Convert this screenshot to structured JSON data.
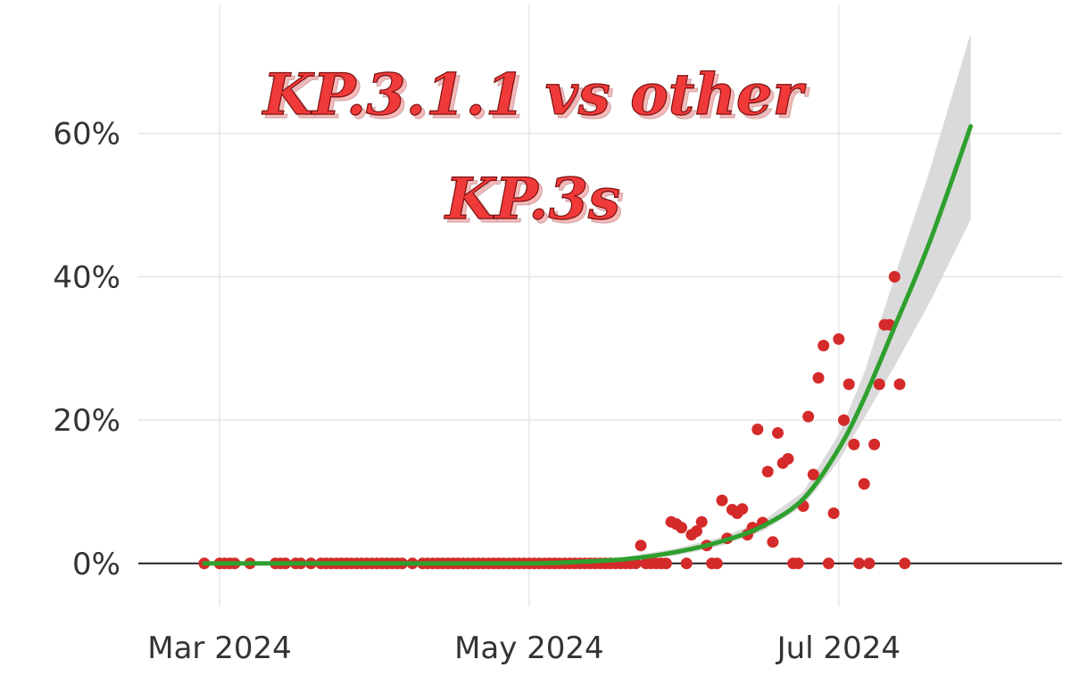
{
  "chart_data": {
    "type": "scatter",
    "title_lines": [
      "KP.3.1.1 vs other",
      "KP.3s"
    ],
    "xlabel": "",
    "ylabel": "",
    "x_ticks": [
      {
        "label": "Mar 2024",
        "date": "2024-03-01"
      },
      {
        "label": "May 2024",
        "date": "2024-05-01"
      },
      {
        "label": "Jul 2024",
        "date": "2024-07-01"
      }
    ],
    "y_ticks": [
      {
        "label": "0%",
        "value": 0
      },
      {
        "label": "20%",
        "value": 20
      },
      {
        "label": "40%",
        "value": 40
      },
      {
        "label": "60%",
        "value": 60
      }
    ],
    "xlim": [
      "2024-02-14",
      "2024-08-14"
    ],
    "ylim": [
      -6,
      78
    ],
    "grid": true,
    "colors": {
      "points": "#d42a2a",
      "fit": "#2ea02e",
      "band": "#d6d6d6",
      "title": "#f03a3a",
      "grid": "#e6e6e6",
      "zero_line": "#222222"
    },
    "fit": [
      {
        "date": "2024-02-27",
        "y": 0.0,
        "lo": 0.0,
        "hi": 0.0
      },
      {
        "date": "2024-04-01",
        "y": 0.0,
        "lo": 0.0,
        "hi": 0.0
      },
      {
        "date": "2024-05-01",
        "y": 0.0,
        "lo": 0.0,
        "hi": 0.1
      },
      {
        "date": "2024-05-10",
        "y": 0.2,
        "lo": 0.1,
        "hi": 0.3
      },
      {
        "date": "2024-05-20",
        "y": 0.6,
        "lo": 0.4,
        "hi": 0.9
      },
      {
        "date": "2024-05-30",
        "y": 1.6,
        "lo": 1.1,
        "hi": 2.1
      },
      {
        "date": "2024-06-08",
        "y": 3.1,
        "lo": 2.5,
        "hi": 3.7
      },
      {
        "date": "2024-06-16",
        "y": 5.2,
        "lo": 4.5,
        "hi": 5.9
      },
      {
        "date": "2024-06-24",
        "y": 9.0,
        "lo": 8.0,
        "hi": 10.0
      },
      {
        "date": "2024-07-01",
        "y": 16.0,
        "lo": 14.3,
        "hi": 18.0
      },
      {
        "date": "2024-07-06",
        "y": 23.0,
        "lo": 20.3,
        "hi": 26.5
      },
      {
        "date": "2024-07-12",
        "y": 33.0,
        "lo": 27.5,
        "hi": 40.0
      },
      {
        "date": "2024-07-19",
        "y": 45.0,
        "lo": 36.5,
        "hi": 55.0
      },
      {
        "date": "2024-07-27",
        "y": 61.0,
        "lo": 48.0,
        "hi": 74.0
      }
    ],
    "points": [
      {
        "date": "2024-02-27",
        "y": 0
      },
      {
        "date": "2024-03-01",
        "y": 0
      },
      {
        "date": "2024-03-02",
        "y": 0
      },
      {
        "date": "2024-03-03",
        "y": 0
      },
      {
        "date": "2024-03-04",
        "y": 0
      },
      {
        "date": "2024-03-07",
        "y": 0
      },
      {
        "date": "2024-03-12",
        "y": 0
      },
      {
        "date": "2024-03-13",
        "y": 0
      },
      {
        "date": "2024-03-14",
        "y": 0
      },
      {
        "date": "2024-03-16",
        "y": 0
      },
      {
        "date": "2024-03-17",
        "y": 0
      },
      {
        "date": "2024-03-19",
        "y": 0
      },
      {
        "date": "2024-03-21",
        "y": 0
      },
      {
        "date": "2024-03-22",
        "y": 0
      },
      {
        "date": "2024-03-23",
        "y": 0
      },
      {
        "date": "2024-03-24",
        "y": 0
      },
      {
        "date": "2024-03-25",
        "y": 0
      },
      {
        "date": "2024-03-26",
        "y": 0
      },
      {
        "date": "2024-03-27",
        "y": 0
      },
      {
        "date": "2024-03-28",
        "y": 0
      },
      {
        "date": "2024-03-29",
        "y": 0
      },
      {
        "date": "2024-03-30",
        "y": 0
      },
      {
        "date": "2024-03-31",
        "y": 0
      },
      {
        "date": "2024-04-01",
        "y": 0
      },
      {
        "date": "2024-04-02",
        "y": 0
      },
      {
        "date": "2024-04-03",
        "y": 0
      },
      {
        "date": "2024-04-04",
        "y": 0
      },
      {
        "date": "2024-04-05",
        "y": 0
      },
      {
        "date": "2024-04-06",
        "y": 0
      },
      {
        "date": "2024-04-08",
        "y": 0
      },
      {
        "date": "2024-04-10",
        "y": 0
      },
      {
        "date": "2024-04-11",
        "y": 0
      },
      {
        "date": "2024-04-12",
        "y": 0
      },
      {
        "date": "2024-04-13",
        "y": 0
      },
      {
        "date": "2024-04-14",
        "y": 0
      },
      {
        "date": "2024-04-15",
        "y": 0
      },
      {
        "date": "2024-04-16",
        "y": 0
      },
      {
        "date": "2024-04-17",
        "y": 0
      },
      {
        "date": "2024-04-18",
        "y": 0
      },
      {
        "date": "2024-04-19",
        "y": 0
      },
      {
        "date": "2024-04-20",
        "y": 0
      },
      {
        "date": "2024-04-21",
        "y": 0
      },
      {
        "date": "2024-04-22",
        "y": 0
      },
      {
        "date": "2024-04-23",
        "y": 0
      },
      {
        "date": "2024-04-24",
        "y": 0
      },
      {
        "date": "2024-04-25",
        "y": 0
      },
      {
        "date": "2024-04-26",
        "y": 0
      },
      {
        "date": "2024-04-27",
        "y": 0
      },
      {
        "date": "2024-04-28",
        "y": 0
      },
      {
        "date": "2024-04-29",
        "y": 0
      },
      {
        "date": "2024-04-30",
        "y": 0
      },
      {
        "date": "2024-05-01",
        "y": 0
      },
      {
        "date": "2024-05-02",
        "y": 0
      },
      {
        "date": "2024-05-03",
        "y": 0
      },
      {
        "date": "2024-05-04",
        "y": 0
      },
      {
        "date": "2024-05-05",
        "y": 0
      },
      {
        "date": "2024-05-06",
        "y": 0
      },
      {
        "date": "2024-05-07",
        "y": 0
      },
      {
        "date": "2024-05-08",
        "y": 0
      },
      {
        "date": "2024-05-09",
        "y": 0
      },
      {
        "date": "2024-05-10",
        "y": 0
      },
      {
        "date": "2024-05-11",
        "y": 0
      },
      {
        "date": "2024-05-12",
        "y": 0
      },
      {
        "date": "2024-05-13",
        "y": 0
      },
      {
        "date": "2024-05-14",
        "y": 0
      },
      {
        "date": "2024-05-15",
        "y": 0
      },
      {
        "date": "2024-05-16",
        "y": 0
      },
      {
        "date": "2024-05-17",
        "y": 0
      },
      {
        "date": "2024-05-18",
        "y": 0
      },
      {
        "date": "2024-05-19",
        "y": 0
      },
      {
        "date": "2024-05-20",
        "y": 0
      },
      {
        "date": "2024-05-21",
        "y": 0
      },
      {
        "date": "2024-05-22",
        "y": 0
      },
      {
        "date": "2024-05-23",
        "y": 2.5
      },
      {
        "date": "2024-05-24",
        "y": 0
      },
      {
        "date": "2024-05-25",
        "y": 0
      },
      {
        "date": "2024-05-26",
        "y": 0
      },
      {
        "date": "2024-05-27",
        "y": 0
      },
      {
        "date": "2024-05-28",
        "y": 0
      },
      {
        "date": "2024-05-29",
        "y": 5.8
      },
      {
        "date": "2024-05-30",
        "y": 5.5
      },
      {
        "date": "2024-05-31",
        "y": 5.0
      },
      {
        "date": "2024-06-01",
        "y": 0
      },
      {
        "date": "2024-06-02",
        "y": 4.0
      },
      {
        "date": "2024-06-03",
        "y": 4.5
      },
      {
        "date": "2024-06-04",
        "y": 5.8
      },
      {
        "date": "2024-06-05",
        "y": 2.5
      },
      {
        "date": "2024-06-06",
        "y": 0
      },
      {
        "date": "2024-06-07",
        "y": 0
      },
      {
        "date": "2024-06-08",
        "y": 8.8
      },
      {
        "date": "2024-06-09",
        "y": 3.5
      },
      {
        "date": "2024-06-10",
        "y": 7.5
      },
      {
        "date": "2024-06-11",
        "y": 7.0
      },
      {
        "date": "2024-06-12",
        "y": 7.6
      },
      {
        "date": "2024-06-13",
        "y": 4.0
      },
      {
        "date": "2024-06-14",
        "y": 5.0
      },
      {
        "date": "2024-06-15",
        "y": 18.7
      },
      {
        "date": "2024-06-16",
        "y": 5.7
      },
      {
        "date": "2024-06-17",
        "y": 12.8
      },
      {
        "date": "2024-06-18",
        "y": 3.0
      },
      {
        "date": "2024-06-19",
        "y": 18.2
      },
      {
        "date": "2024-06-20",
        "y": 14.0
      },
      {
        "date": "2024-06-21",
        "y": 14.6
      },
      {
        "date": "2024-06-22",
        "y": 0
      },
      {
        "date": "2024-06-23",
        "y": 0
      },
      {
        "date": "2024-06-24",
        "y": 8.0
      },
      {
        "date": "2024-06-25",
        "y": 20.5
      },
      {
        "date": "2024-06-26",
        "y": 12.4
      },
      {
        "date": "2024-06-27",
        "y": 25.9
      },
      {
        "date": "2024-06-28",
        "y": 30.4
      },
      {
        "date": "2024-06-29",
        "y": 0
      },
      {
        "date": "2024-06-30",
        "y": 7.0
      },
      {
        "date": "2024-07-01",
        "y": 31.3
      },
      {
        "date": "2024-07-02",
        "y": 20.0
      },
      {
        "date": "2024-07-03",
        "y": 25.0
      },
      {
        "date": "2024-07-04",
        "y": 16.6
      },
      {
        "date": "2024-07-05",
        "y": 0
      },
      {
        "date": "2024-07-06",
        "y": 11.1
      },
      {
        "date": "2024-07-07",
        "y": 0
      },
      {
        "date": "2024-07-08",
        "y": 16.6
      },
      {
        "date": "2024-07-09",
        "y": 25.0
      },
      {
        "date": "2024-07-10",
        "y": 33.3
      },
      {
        "date": "2024-07-11",
        "y": 33.3
      },
      {
        "date": "2024-07-12",
        "y": 40.0
      },
      {
        "date": "2024-07-13",
        "y": 25.0
      },
      {
        "date": "2024-07-14",
        "y": 0
      }
    ]
  }
}
